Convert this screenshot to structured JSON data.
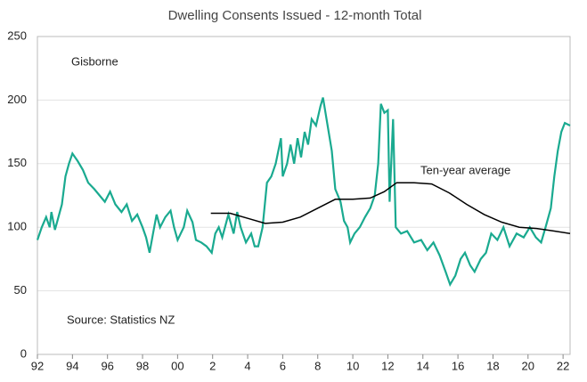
{
  "chart_data": {
    "type": "line",
    "title": "Dwelling Consents Issued - 12-month Total",
    "annotation": "Source: Statistics NZ",
    "xlim": [
      1992,
      2022.4
    ],
    "ylim": [
      0,
      250
    ],
    "yticks": [
      0,
      50,
      100,
      150,
      200,
      250
    ],
    "xticks": [
      {
        "value": 1992,
        "label": "92"
      },
      {
        "value": 1994,
        "label": "94"
      },
      {
        "value": 1996,
        "label": "96"
      },
      {
        "value": 1998,
        "label": "98"
      },
      {
        "value": 2000,
        "label": "00"
      },
      {
        "value": 2002,
        "label": "2"
      },
      {
        "value": 2004,
        "label": "4"
      },
      {
        "value": 2006,
        "label": "6"
      },
      {
        "value": 2008,
        "label": "8"
      },
      {
        "value": 2010,
        "label": "10"
      },
      {
        "value": 2012,
        "label": "12"
      },
      {
        "value": 2014,
        "label": "14"
      },
      {
        "value": 2016,
        "label": "16"
      },
      {
        "value": 2018,
        "label": "18"
      },
      {
        "value": 2020,
        "label": "20"
      },
      {
        "value": 2022,
        "label": "22"
      }
    ],
    "grid": true,
    "series": [
      {
        "name": "Gisborne",
        "color": "#1aaa90",
        "x": [
          1992.0,
          1992.25,
          1992.5,
          1992.7,
          1992.8,
          1993.0,
          1993.2,
          1993.4,
          1993.6,
          1993.8,
          1994.0,
          1994.3,
          1994.6,
          1994.9,
          1995.25,
          1995.55,
          1995.85,
          1996.15,
          1996.45,
          1996.8,
          1997.1,
          1997.4,
          1997.7,
          1998.0,
          1998.2,
          1998.4,
          1998.6,
          1998.8,
          1999.0,
          1999.3,
          1999.6,
          1999.8,
          2000.0,
          2000.35,
          2000.55,
          2000.85,
          2001.05,
          2001.35,
          2001.65,
          2001.95,
          2002.15,
          2002.35,
          2002.55,
          2002.9,
          2003.2,
          2003.4,
          2003.6,
          2003.9,
          2004.2,
          2004.4,
          2004.6,
          2004.85,
          2005.1,
          2005.35,
          2005.6,
          2005.9,
          2006.0,
          2006.25,
          2006.45,
          2006.65,
          2006.85,
          2007.05,
          2007.25,
          2007.45,
          2007.65,
          2007.9,
          2008.15,
          2008.3,
          2008.5,
          2008.8,
          2009.0,
          2009.3,
          2009.5,
          2009.7,
          2009.85,
          2010.1,
          2010.4,
          2010.7,
          2011.0,
          2011.25,
          2011.45,
          2011.6,
          2011.8,
          2012.0,
          2012.1,
          2012.3,
          2012.45,
          2012.75,
          2013.1,
          2013.5,
          2013.9,
          2014.25,
          2014.6,
          2014.95,
          2015.3,
          2015.55,
          2015.85,
          2016.15,
          2016.4,
          2016.7,
          2016.95,
          2017.3,
          2017.6,
          2017.9,
          2018.25,
          2018.6,
          2018.95,
          2019.35,
          2019.75,
          2020.1,
          2020.45,
          2020.75,
          2021.0,
          2021.3,
          2021.5,
          2021.7,
          2021.9,
          2022.1,
          2022.4
        ],
        "values": [
          90,
          100,
          108,
          100,
          112,
          98,
          108,
          118,
          140,
          150,
          158,
          152,
          145,
          135,
          130,
          125,
          120,
          128,
          118,
          112,
          118,
          105,
          110,
          100,
          92,
          80,
          95,
          110,
          100,
          108,
          113,
          100,
          90,
          100,
          113,
          104,
          90,
          88,
          85,
          80,
          95,
          100,
          92,
          110,
          95,
          112,
          100,
          88,
          95,
          85,
          85,
          100,
          135,
          140,
          150,
          170,
          140,
          150,
          165,
          150,
          170,
          155,
          175,
          165,
          185,
          180,
          195,
          202,
          185,
          160,
          130,
          120,
          105,
          100,
          88,
          95,
          100,
          108,
          115,
          125,
          150,
          197,
          190,
          192,
          120,
          185,
          100,
          95,
          97,
          88,
          90,
          82,
          88,
          78,
          65,
          55,
          62,
          75,
          80,
          70,
          65,
          75,
          80,
          95,
          90,
          100,
          85,
          95,
          92,
          100,
          92,
          88,
          100,
          115,
          140,
          160,
          175,
          182,
          180
        ]
      },
      {
        "name": "Ten-year average",
        "color": "#000000",
        "x": [
          2001.9,
          2003.0,
          2004.0,
          2005.0,
          2006.0,
          2007.0,
          2008.0,
          2009.0,
          2010.0,
          2011.0,
          2011.8,
          2012.5,
          2013.5,
          2014.5,
          2015.5,
          2016.5,
          2017.5,
          2018.5,
          2019.5,
          2020.5,
          2021.5,
          2022.4
        ],
        "values": [
          111,
          111,
          107,
          103,
          104,
          108,
          115,
          122,
          122,
          123,
          128,
          135,
          135,
          134,
          127,
          118,
          110,
          104,
          100,
          99,
          97,
          95
        ]
      }
    ]
  }
}
